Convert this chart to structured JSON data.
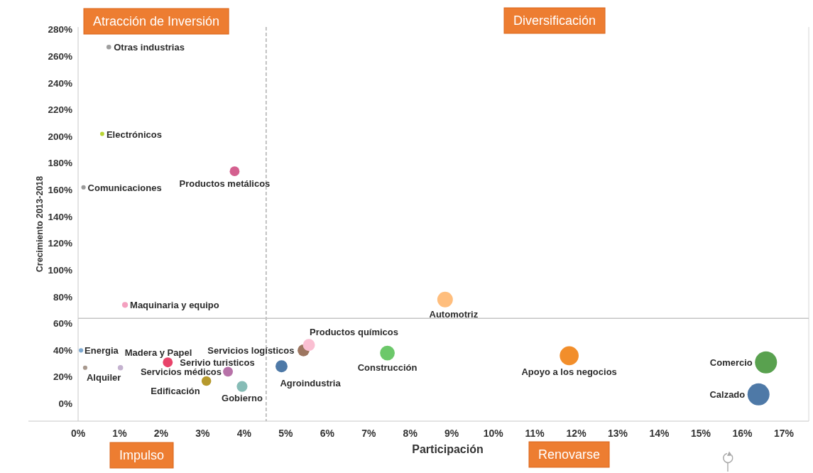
{
  "chart_data": {
    "type": "bubble",
    "xlabel": "Participación",
    "ylabel": "Crecimiento 2013-2018",
    "annotations": [
      "Atracción de Inversión",
      "Diversificación",
      "Impulso",
      "Renovarse"
    ],
    "xlim": [
      0,
      17.6
    ],
    "xticks": [
      {
        "value": 0,
        "label": "0%"
      },
      {
        "value": 1,
        "label": "1%"
      },
      {
        "value": 2,
        "label": "2%"
      },
      {
        "value": 3,
        "label": "3%"
      },
      {
        "value": 4,
        "label": "4%"
      },
      {
        "value": 5,
        "label": "5%"
      },
      {
        "value": 6,
        "label": "6%"
      },
      {
        "value": 7,
        "label": "7%"
      },
      {
        "value": 8,
        "label": "8%"
      },
      {
        "value": 9,
        "label": "9%"
      },
      {
        "value": 10,
        "label": "10%"
      },
      {
        "value": 11,
        "label": "11%"
      },
      {
        "value": 12,
        "label": "12%"
      },
      {
        "value": 13,
        "label": "13%"
      },
      {
        "value": 14,
        "label": "14%"
      },
      {
        "value": 15,
        "label": "15%"
      },
      {
        "value": 16,
        "label": "16%"
      },
      {
        "value": 17,
        "label": "17%"
      }
    ],
    "ylim": [
      -13,
      282
    ],
    "yticks": [
      {
        "value": 0,
        "label": "0%"
      },
      {
        "value": 20,
        "label": "20%"
      },
      {
        "value": 40,
        "label": "40%"
      },
      {
        "value": 60,
        "label": "60%"
      },
      {
        "value": 80,
        "label": "80%"
      },
      {
        "value": 100,
        "label": "100%"
      },
      {
        "value": 120,
        "label": "120%"
      },
      {
        "value": 140,
        "label": "140%"
      },
      {
        "value": 160,
        "label": "160%"
      },
      {
        "value": 180,
        "label": "180%"
      },
      {
        "value": 200,
        "label": "200%"
      },
      {
        "value": 220,
        "label": "220%"
      },
      {
        "value": 240,
        "label": "240%"
      },
      {
        "value": 260,
        "label": "260%"
      },
      {
        "value": 280,
        "label": "280%"
      }
    ],
    "ref_lines": [
      {
        "axis": "x",
        "value": 4.53,
        "color": "#b0b0b0",
        "line_style": "dashed"
      },
      {
        "axis": "y",
        "value": 64,
        "color": "#c4c4c4",
        "line_style": "solid"
      }
    ],
    "series": [
      {
        "name": "Otras industrias",
        "color": "#9e9e9e",
        "x": [
          0.74
        ],
        "values": [
          267
        ],
        "sizes": [
          0.045
        ]
      },
      {
        "name": "Electrónicos",
        "color": "#b8d433",
        "x": [
          0.58
        ],
        "values": [
          202
        ],
        "sizes": [
          0.035
        ]
      },
      {
        "name": "Comunicaciones",
        "color": "#9a9a9a",
        "x": [
          0.13
        ],
        "values": [
          162
        ],
        "sizes": [
          0.04
        ]
      },
      {
        "name": "Productos metálicos",
        "color": "#d4608f",
        "x": [
          3.77
        ],
        "values": [
          174
        ],
        "sizes": [
          0.2
        ]
      },
      {
        "name": "Maquinaria y equipo",
        "color": "#f4a0bf",
        "x": [
          1.13
        ],
        "values": [
          74
        ],
        "sizes": [
          0.07
        ]
      },
      {
        "name": "Automotriz",
        "color": "#ffbe7d",
        "x": [
          8.84
        ],
        "values": [
          78
        ],
        "sizes": [
          0.5
        ]
      },
      {
        "name": "Madera y Papel",
        "color": "#c4b2cf",
        "x": [
          1.02
        ],
        "values": [
          27
        ],
        "sizes": [
          0.06
        ]
      },
      {
        "name": "Energia",
        "color": "#7ea8cf",
        "x": [
          0.07
        ],
        "values": [
          40
        ],
        "sizes": [
          0.04
        ]
      },
      {
        "name": "Alquiler",
        "color": "#a8998e",
        "x": [
          0.17
        ],
        "values": [
          27
        ],
        "sizes": [
          0.04
        ]
      },
      {
        "name": "Serivio turisticos",
        "color": "#e8436a",
        "x": [
          2.16
        ],
        "values": [
          31
        ],
        "sizes": [
          0.2
        ]
      },
      {
        "name": "Servicios médicos",
        "color": "#b772a8",
        "x": [
          3.61
        ],
        "values": [
          24
        ],
        "sizes": [
          0.2
        ]
      },
      {
        "name": "Edificación",
        "color": "#b6992d",
        "x": [
          3.09
        ],
        "values": [
          17
        ],
        "sizes": [
          0.19
        ]
      },
      {
        "name": "Gobierno",
        "color": "#86bcb6",
        "x": [
          3.95
        ],
        "values": [
          13
        ],
        "sizes": [
          0.24
        ]
      },
      {
        "name": "Servicios logísticos",
        "color": "#9d7660",
        "x": [
          5.43
        ],
        "values": [
          40
        ],
        "sizes": [
          0.29
        ]
      },
      {
        "name": "Productos químicos",
        "color": "#fabfd2",
        "x": [
          5.56
        ],
        "values": [
          44
        ],
        "sizes": [
          0.3
        ]
      },
      {
        "name": "Agroindustria",
        "color": "#4e79a7",
        "x": [
          4.9
        ],
        "values": [
          28
        ],
        "sizes": [
          0.3
        ]
      },
      {
        "name": "Construcción",
        "color": "#6cc86a",
        "x": [
          7.45
        ],
        "values": [
          38
        ],
        "sizes": [
          0.45
        ]
      },
      {
        "name": "Apoyo a los negocios",
        "color": "#f28e2b",
        "x": [
          11.83
        ],
        "values": [
          36
        ],
        "sizes": [
          0.74
        ]
      },
      {
        "name": "Comercio",
        "color": "#59a14f",
        "x": [
          16.57
        ],
        "values": [
          31
        ],
        "sizes": [
          1
        ]
      },
      {
        "name": "Calzado",
        "color": "#4e79a7",
        "x": [
          16.39
        ],
        "values": [
          7
        ],
        "sizes": [
          1
        ]
      }
    ]
  }
}
